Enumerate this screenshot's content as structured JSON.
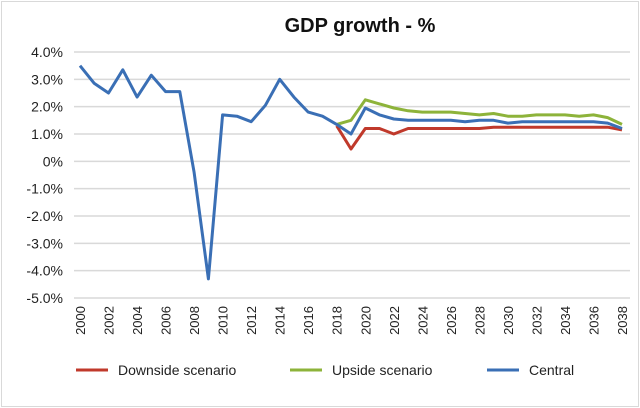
{
  "chart_data": {
    "type": "line",
    "title": "GDP growth - %",
    "xlabel": "",
    "ylabel": "",
    "ylim": [
      -5.0,
      4.0
    ],
    "yticks": [
      "4.0%",
      "3.0%",
      "2.0%",
      "1.0%",
      "0%",
      "-1.0%",
      "-2.0%",
      "-3.0%",
      "-4.0%",
      "-5.0%"
    ],
    "ytick_values": [
      4,
      3,
      2,
      1,
      0,
      -1,
      -2,
      -3,
      -4,
      -5
    ],
    "xlim": [
      2000,
      2038
    ],
    "xticks": [
      "2000",
      "2002",
      "2004",
      "2006",
      "2008",
      "2010",
      "2012",
      "2014",
      "2016",
      "2018",
      "2020",
      "2022",
      "2024",
      "2026",
      "2028",
      "2030",
      "2032",
      "2034",
      "2036",
      "2038"
    ],
    "grid": true,
    "legend_position": "bottom",
    "x": [
      2000,
      2001,
      2002,
      2003,
      2004,
      2005,
      2006,
      2007,
      2008,
      2009,
      2010,
      2011,
      2012,
      2013,
      2014,
      2015,
      2016,
      2017,
      2018,
      2019,
      2020,
      2021,
      2022,
      2023,
      2024,
      2025,
      2026,
      2027,
      2028,
      2029,
      2030,
      2031,
      2032,
      2033,
      2034,
      2035,
      2036,
      2037,
      2038
    ],
    "series": [
      {
        "name": "Downside scenario",
        "color": "#c0392b",
        "values": [
          null,
          null,
          null,
          null,
          null,
          null,
          null,
          null,
          null,
          null,
          null,
          null,
          null,
          null,
          null,
          null,
          null,
          null,
          1.3,
          0.45,
          1.2,
          1.2,
          1.0,
          1.2,
          1.2,
          1.2,
          1.2,
          1.2,
          1.2,
          1.25,
          1.25,
          1.25,
          1.25,
          1.25,
          1.25,
          1.25,
          1.25,
          1.25,
          1.15
        ]
      },
      {
        "name": "Upside scenario",
        "color": "#8db33a",
        "values": [
          null,
          null,
          null,
          null,
          null,
          null,
          null,
          null,
          null,
          null,
          null,
          null,
          null,
          null,
          null,
          null,
          null,
          null,
          1.35,
          1.5,
          2.25,
          2.1,
          1.95,
          1.85,
          1.8,
          1.8,
          1.8,
          1.75,
          1.7,
          1.75,
          1.65,
          1.65,
          1.7,
          1.7,
          1.7,
          1.65,
          1.7,
          1.6,
          1.35
        ]
      },
      {
        "name": "Central",
        "color": "#3a6fb5",
        "values": [
          3.5,
          2.85,
          2.5,
          3.35,
          2.35,
          3.15,
          2.55,
          2.55,
          -0.4,
          -4.3,
          1.7,
          1.65,
          1.45,
          2.05,
          3.0,
          2.35,
          1.8,
          1.65,
          1.35,
          1.0,
          1.95,
          1.7,
          1.55,
          1.5,
          1.5,
          1.5,
          1.5,
          1.45,
          1.5,
          1.5,
          1.4,
          1.45,
          1.45,
          1.45,
          1.45,
          1.45,
          1.45,
          1.4,
          1.2
        ]
      }
    ]
  }
}
